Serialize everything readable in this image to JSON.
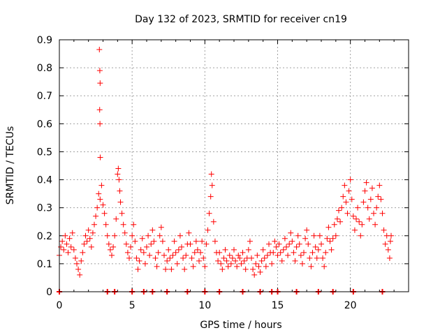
{
  "chart_data": {
    "type": "scatter",
    "title": "Day 132 of 2023, SRMTID for receiver cn19",
    "xlabel": "GPS time / hours",
    "ylabel": "SRMTID / TECUs",
    "xlim": [
      0,
      24
    ],
    "ylim": [
      0,
      0.9
    ],
    "xticks": [
      0,
      5,
      10,
      15,
      20
    ],
    "yticks": [
      0,
      0.1,
      0.2,
      0.3,
      0.4,
      0.5,
      0.6,
      0.7,
      0.8,
      0.9
    ],
    "grid": true,
    "marker": "+",
    "color": "#ff0000",
    "series": [
      {
        "name": "cn19",
        "points": [
          [
            0.0,
            0.13
          ],
          [
            0.1,
            0.16
          ],
          [
            0.2,
            0.18
          ],
          [
            0.3,
            0.15
          ],
          [
            0.4,
            0.2
          ],
          [
            0.5,
            0.17
          ],
          [
            0.6,
            0.14
          ],
          [
            0.7,
            0.19
          ],
          [
            0.8,
            0.16
          ],
          [
            0.9,
            0.21
          ],
          [
            1.0,
            0.15
          ],
          [
            1.1,
            0.12
          ],
          [
            1.2,
            0.1
          ],
          [
            1.3,
            0.08
          ],
          [
            1.4,
            0.06
          ],
          [
            1.5,
            0.11
          ],
          [
            1.6,
            0.14
          ],
          [
            1.7,
            0.17
          ],
          [
            1.8,
            0.2
          ],
          [
            1.9,
            0.18
          ],
          [
            2.0,
            0.22
          ],
          [
            2.1,
            0.19
          ],
          [
            2.2,
            0.16
          ],
          [
            2.3,
            0.21
          ],
          [
            2.4,
            0.24
          ],
          [
            2.5,
            0.27
          ],
          [
            2.6,
            0.3
          ],
          [
            2.7,
            0.35
          ],
          [
            2.8,
            0.33
          ],
          [
            2.9,
            0.38
          ],
          [
            3.0,
            0.31
          ],
          [
            3.1,
            0.28
          ],
          [
            3.2,
            0.24
          ],
          [
            3.3,
            0.2
          ],
          [
            3.4,
            0.17
          ],
          [
            3.5,
            0.15
          ],
          [
            3.6,
            0.13
          ],
          [
            3.7,
            0.16
          ],
          [
            3.8,
            0.2
          ],
          [
            3.9,
            0.26
          ],
          [
            4.0,
            0.42
          ],
          [
            4.05,
            0.44
          ],
          [
            4.1,
            0.4
          ],
          [
            4.15,
            0.36
          ],
          [
            4.2,
            0.32
          ],
          [
            4.3,
            0.28
          ],
          [
            4.4,
            0.24
          ],
          [
            4.5,
            0.21
          ],
          [
            4.6,
            0.17
          ],
          [
            4.7,
            0.14
          ],
          [
            4.8,
            0.12
          ],
          [
            4.9,
            0.16
          ],
          [
            5.0,
            0.2
          ],
          [
            5.1,
            0.24
          ],
          [
            5.2,
            0.18
          ],
          [
            5.3,
            0.12
          ],
          [
            5.4,
            0.08
          ],
          [
            5.5,
            0.11
          ],
          [
            5.6,
            0.15
          ],
          [
            5.7,
            0.19
          ],
          [
            5.8,
            0.14
          ],
          [
            5.9,
            0.1
          ],
          [
            6.0,
            0.16
          ],
          [
            6.1,
            0.2
          ],
          [
            6.2,
            0.13
          ],
          [
            6.3,
            0.17
          ],
          [
            6.4,
            0.22
          ],
          [
            6.5,
            0.18
          ],
          [
            6.6,
            0.12
          ],
          [
            6.7,
            0.09
          ],
          [
            6.8,
            0.14
          ],
          [
            6.9,
            0.2
          ],
          [
            7.0,
            0.23
          ],
          [
            7.1,
            0.18
          ],
          [
            7.2,
            0.13
          ],
          [
            7.3,
            0.08
          ],
          [
            7.4,
            0.11
          ],
          [
            7.5,
            0.15
          ],
          [
            7.6,
            0.12
          ],
          [
            7.7,
            0.08
          ],
          [
            7.8,
            0.13
          ],
          [
            7.9,
            0.18
          ],
          [
            8.0,
            0.14
          ],
          [
            8.1,
            0.1
          ],
          [
            8.2,
            0.15
          ],
          [
            8.3,
            0.2
          ],
          [
            8.4,
            0.16
          ],
          [
            8.5,
            0.12
          ],
          [
            8.6,
            0.08
          ],
          [
            8.7,
            0.13
          ],
          [
            8.8,
            0.17
          ],
          [
            8.9,
            0.21
          ],
          [
            9.0,
            0.17
          ],
          [
            9.1,
            0.12
          ],
          [
            9.2,
            0.09
          ],
          [
            9.3,
            0.14
          ],
          [
            9.4,
            0.18
          ],
          [
            9.5,
            0.15
          ],
          [
            9.6,
            0.11
          ],
          [
            9.7,
            0.14
          ],
          [
            9.8,
            0.18
          ],
          [
            9.9,
            0.12
          ],
          [
            10.0,
            0.09
          ],
          [
            10.1,
            0.17
          ],
          [
            10.2,
            0.22
          ],
          [
            10.3,
            0.28
          ],
          [
            10.4,
            0.34
          ],
          [
            10.45,
            0.42
          ],
          [
            10.5,
            0.38
          ],
          [
            10.6,
            0.25
          ],
          [
            10.7,
            0.18
          ],
          [
            10.8,
            0.14
          ],
          [
            10.9,
            0.11
          ],
          [
            11.0,
            0.14
          ],
          [
            11.1,
            0.1
          ],
          [
            11.2,
            0.08
          ],
          [
            11.3,
            0.12
          ],
          [
            11.4,
            0.15
          ],
          [
            11.5,
            0.11
          ],
          [
            11.6,
            0.09
          ],
          [
            11.7,
            0.13
          ],
          [
            11.8,
            0.1
          ],
          [
            11.9,
            0.12
          ],
          [
            12.0,
            0.15
          ],
          [
            12.1,
            0.11
          ],
          [
            12.2,
            0.09
          ],
          [
            12.3,
            0.13
          ],
          [
            12.4,
            0.12
          ],
          [
            12.5,
            0.1
          ],
          [
            12.6,
            0.14
          ],
          [
            12.7,
            0.11
          ],
          [
            12.8,
            0.08
          ],
          [
            12.9,
            0.12
          ],
          [
            13.0,
            0.15
          ],
          [
            13.1,
            0.18
          ],
          [
            13.2,
            0.12
          ],
          [
            13.3,
            0.08
          ],
          [
            13.4,
            0.06
          ],
          [
            13.5,
            0.1
          ],
          [
            13.6,
            0.13
          ],
          [
            13.7,
            0.09
          ],
          [
            13.8,
            0.07
          ],
          [
            13.9,
            0.11
          ],
          [
            14.0,
            0.15
          ],
          [
            14.1,
            0.12
          ],
          [
            14.2,
            0.09
          ],
          [
            14.3,
            0.13
          ],
          [
            14.4,
            0.17
          ],
          [
            14.5,
            0.14
          ],
          [
            14.6,
            0.1
          ],
          [
            14.7,
            0.14
          ],
          [
            14.8,
            0.18
          ],
          [
            14.9,
            0.16
          ],
          [
            15.0,
            0.13
          ],
          [
            15.1,
            0.17
          ],
          [
            15.2,
            0.14
          ],
          [
            15.3,
            0.11
          ],
          [
            15.4,
            0.15
          ],
          [
            15.5,
            0.19
          ],
          [
            15.6,
            0.16
          ],
          [
            15.7,
            0.13
          ],
          [
            15.8,
            0.17
          ],
          [
            15.9,
            0.21
          ],
          [
            16.0,
            0.18
          ],
          [
            16.1,
            0.14
          ],
          [
            16.2,
            0.11
          ],
          [
            16.3,
            0.16
          ],
          [
            16.4,
            0.2
          ],
          [
            16.5,
            0.17
          ],
          [
            16.6,
            0.13
          ],
          [
            16.7,
            0.1
          ],
          [
            16.8,
            0.14
          ],
          [
            16.9,
            0.19
          ],
          [
            17.0,
            0.22
          ],
          [
            17.1,
            0.17
          ],
          [
            17.2,
            0.12
          ],
          [
            17.3,
            0.09
          ],
          [
            17.4,
            0.14
          ],
          [
            17.5,
            0.2
          ],
          [
            17.6,
            0.16
          ],
          [
            17.7,
            0.12
          ],
          [
            17.8,
            0.15
          ],
          [
            17.9,
            0.2
          ],
          [
            18.0,
            0.17
          ],
          [
            18.1,
            0.12
          ],
          [
            18.2,
            0.09
          ],
          [
            18.3,
            0.14
          ],
          [
            18.4,
            0.19
          ],
          [
            18.5,
            0.23
          ],
          [
            18.6,
            0.18
          ],
          [
            18.7,
            0.15
          ],
          [
            18.8,
            0.19
          ],
          [
            18.9,
            0.24
          ],
          [
            19.0,
            0.2
          ],
          [
            19.1,
            0.26
          ],
          [
            19.2,
            0.29
          ],
          [
            19.3,
            0.25
          ],
          [
            19.4,
            0.3
          ],
          [
            19.5,
            0.34
          ],
          [
            19.6,
            0.38
          ],
          [
            19.7,
            0.32
          ],
          [
            19.8,
            0.28
          ],
          [
            19.9,
            0.36
          ],
          [
            20.0,
            0.4
          ],
          [
            20.1,
            0.33
          ],
          [
            20.2,
            0.27
          ],
          [
            20.3,
            0.22
          ],
          [
            20.4,
            0.26
          ],
          [
            20.5,
            0.3
          ],
          [
            20.6,
            0.25
          ],
          [
            20.7,
            0.2
          ],
          [
            20.8,
            0.24
          ],
          [
            20.9,
            0.32
          ],
          [
            21.0,
            0.36
          ],
          [
            21.1,
            0.39
          ],
          [
            21.2,
            0.3
          ],
          [
            21.3,
            0.26
          ],
          [
            21.4,
            0.33
          ],
          [
            21.5,
            0.37
          ],
          [
            21.6,
            0.28
          ],
          [
            21.7,
            0.24
          ],
          [
            21.8,
            0.3
          ],
          [
            21.9,
            0.34
          ],
          [
            22.0,
            0.38
          ],
          [
            22.1,
            0.33
          ],
          [
            22.2,
            0.28
          ],
          [
            22.3,
            0.22
          ],
          [
            22.4,
            0.17
          ],
          [
            22.5,
            0.2
          ],
          [
            22.6,
            0.15
          ],
          [
            22.7,
            0.12
          ],
          [
            22.75,
            0.18
          ],
          [
            22.8,
            0.2
          ],
          [
            2.75,
            0.865
          ],
          [
            2.78,
            0.79
          ],
          [
            2.8,
            0.745
          ],
          [
            2.77,
            0.65
          ],
          [
            2.79,
            0.6
          ],
          [
            2.81,
            0.48
          ]
        ]
      }
    ],
    "axis_markers": {
      "description": "points drawn at zero",
      "x": [
        0.0,
        3.3,
        3.8,
        5.0,
        5.8,
        6.4,
        7.4,
        8.8,
        10.0,
        11.0,
        12.6,
        13.8,
        14.6,
        15.0,
        16.3,
        17.8,
        18.8,
        20.2,
        22.2
      ]
    }
  }
}
